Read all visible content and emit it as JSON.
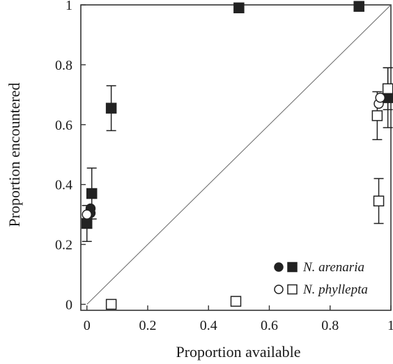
{
  "chart_data": {
    "type": "scatter",
    "xlabel": "Proportion available",
    "ylabel": "Proportion encountered",
    "xlim": [
      -0.02,
      1.0
    ],
    "ylim": [
      -0.02,
      1.0
    ],
    "x_ticks": [
      {
        "value": 0,
        "label": "0"
      },
      {
        "value": 0.2,
        "label": "0.2"
      },
      {
        "value": 0.4,
        "label": "0.4"
      },
      {
        "value": 0.6,
        "label": "0.6"
      },
      {
        "value": 0.8,
        "label": "0.8"
      },
      {
        "value": 1.0,
        "label": "1"
      }
    ],
    "y_ticks": [
      {
        "value": 0,
        "label": "0"
      },
      {
        "value": 0.2,
        "label": "0.2"
      },
      {
        "value": 0.4,
        "label": "0.4"
      },
      {
        "value": 0.6,
        "label": "0.6"
      },
      {
        "value": 0.8,
        "label": "0.8"
      },
      {
        "value": 1.0,
        "label": "1"
      }
    ],
    "diagonal_reference": true,
    "grid": false,
    "legend_position": "bottom-right",
    "series": [
      {
        "name": "N. arenaria",
        "color": "#222222",
        "filled": true,
        "points": [
          {
            "x": 0.0,
            "y": 0.27,
            "marker": "square",
            "err": 0.06
          },
          {
            "x": 0.012,
            "y": 0.32,
            "marker": "circle",
            "err": 0
          },
          {
            "x": 0.012,
            "y": 0.305,
            "marker": "circle",
            "err": 0
          },
          {
            "x": 0.016,
            "y": 0.37,
            "marker": "square",
            "err": 0.085
          },
          {
            "x": 0.08,
            "y": 0.655,
            "marker": "square",
            "err": 0.075
          },
          {
            "x": 0.5,
            "y": 0.99,
            "marker": "square",
            "err": 0
          },
          {
            "x": 0.895,
            "y": 0.995,
            "marker": "square",
            "err": 0
          },
          {
            "x": 0.99,
            "y": 0.69,
            "marker": "square",
            "err": 0.1
          }
        ]
      },
      {
        "name": "N. phyllepta",
        "color": "#222222",
        "filled": false,
        "points": [
          {
            "x": 0.0,
            "y": 0.3,
            "marker": "circle",
            "err": 0.03
          },
          {
            "x": 0.08,
            "y": 0.0,
            "marker": "square",
            "err": 0
          },
          {
            "x": 0.49,
            "y": 0.01,
            "marker": "square",
            "err": 0
          },
          {
            "x": 0.955,
            "y": 0.63,
            "marker": "square",
            "err": 0.08
          },
          {
            "x": 0.96,
            "y": 0.67,
            "marker": "circle",
            "err": 0
          },
          {
            "x": 0.965,
            "y": 0.69,
            "marker": "circle",
            "err": 0
          },
          {
            "x": 0.99,
            "y": 0.72,
            "marker": "square",
            "err": 0.07
          },
          {
            "x": 0.96,
            "y": 0.345,
            "marker": "square",
            "err": 0.075
          }
        ]
      }
    ]
  }
}
